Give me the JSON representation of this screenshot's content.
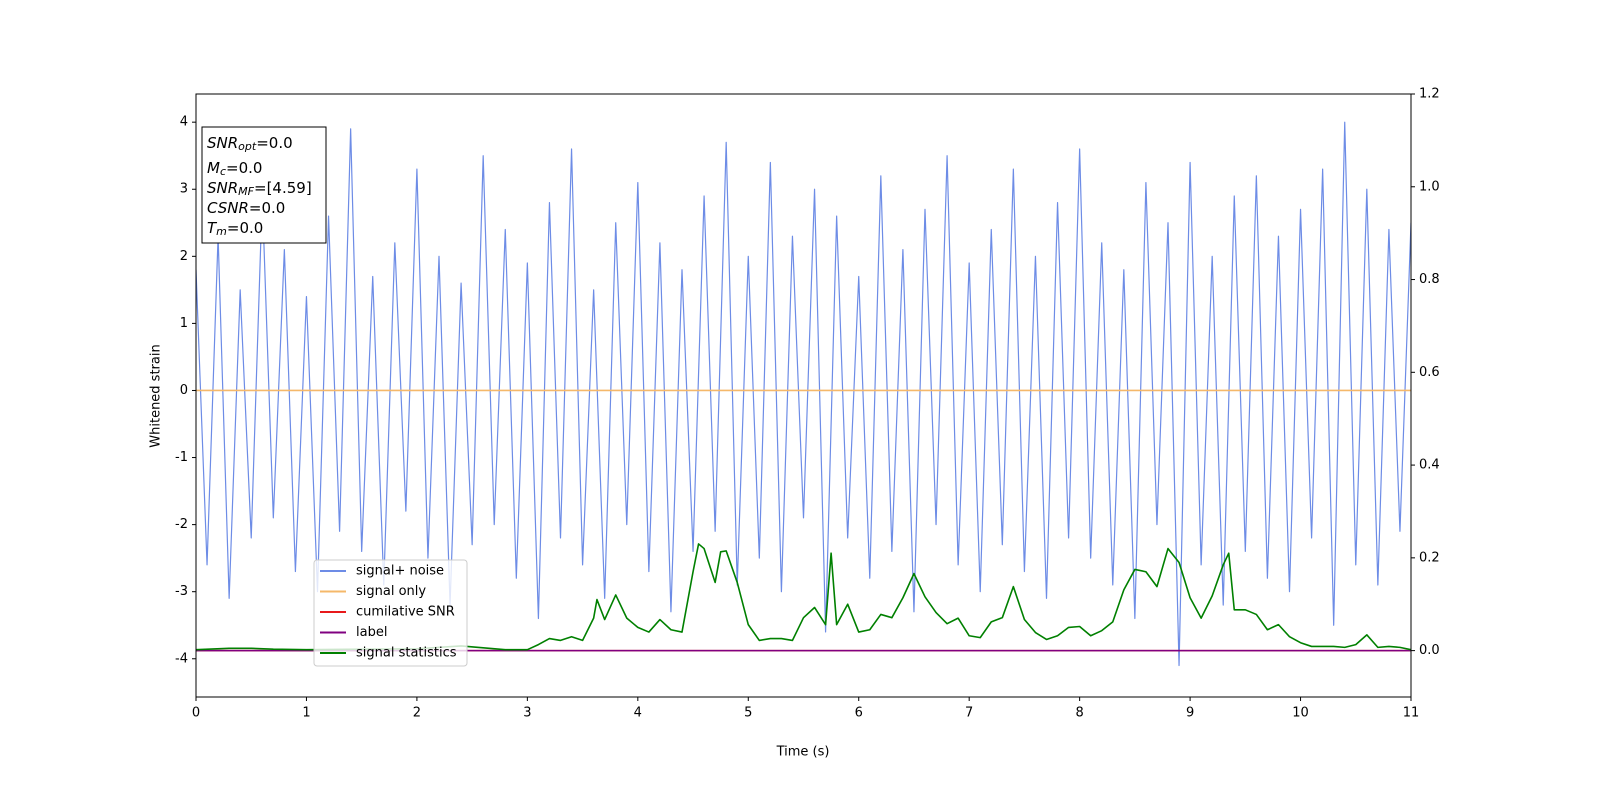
{
  "chart_data": {
    "type": "line",
    "xlabel": "Time (s)",
    "ylabel": "Whitened strain",
    "xlim": [
      0,
      11
    ],
    "xticks": [
      0,
      1,
      2,
      3,
      4,
      5,
      6,
      7,
      8,
      9,
      10,
      11
    ],
    "ylim": [
      -4.57,
      4.42
    ],
    "yticks": [
      -4,
      -3,
      -2,
      -1,
      0,
      1,
      2,
      3,
      4
    ],
    "y2lim": [
      -0.1,
      1.2
    ],
    "y2ticks": [
      {
        "value": 0,
        "label": "0.0"
      },
      {
        "value": 0.2,
        "label": "0.2"
      },
      {
        "value": 0.4,
        "label": "0.4"
      },
      {
        "value": 0.6,
        "label": "0.6"
      },
      {
        "value": 0.8,
        "label": "0.8"
      },
      {
        "value": 1,
        "label": "1.0"
      },
      {
        "value": 1.2,
        "label": "1.2"
      }
    ],
    "legend": "lower left",
    "annotation": [
      {
        "symbol": "SNR",
        "subscript": "opt",
        "text": "=0.0"
      },
      {
        "symbol": "M",
        "subscript": "c",
        "text": "=0.0"
      },
      {
        "symbol": "SNR",
        "subscript": "MF",
        "text": "=[4.59]"
      },
      {
        "symbol": "CSNR",
        "text": "=0.0"
      },
      {
        "symbol": "T",
        "subscript": "m",
        "text": "=0.0"
      }
    ],
    "series": [
      {
        "name": "signal+ noise",
        "color": "#6d8ce6",
        "axis": "y",
        "x": [
          0,
          0.1,
          0.2,
          0.3,
          0.4,
          0.5,
          0.6,
          0.7,
          0.8,
          0.9,
          1,
          1.1,
          1.2,
          1.3,
          1.4,
          1.5,
          1.6,
          1.7,
          1.8,
          1.9,
          2,
          2.1,
          2.2,
          2.3,
          2.4,
          2.5,
          2.6,
          2.7,
          2.8,
          2.9,
          3,
          3.1,
          3.2,
          3.3,
          3.4,
          3.5,
          3.6,
          3.7,
          3.8,
          3.9,
          4,
          4.1,
          4.2,
          4.3,
          4.4,
          4.5,
          4.6,
          4.7,
          4.8,
          4.9,
          5,
          5.1,
          5.2,
          5.3,
          5.4,
          5.5,
          5.6,
          5.7,
          5.8,
          5.9,
          6,
          6.1,
          6.2,
          6.3,
          6.4,
          6.5,
          6.6,
          6.7,
          6.8,
          6.9,
          7,
          7.1,
          7.2,
          7.3,
          7.4,
          7.5,
          7.6,
          7.7,
          7.8,
          7.9,
          8,
          8.1,
          8.2,
          8.3,
          8.4,
          8.5,
          8.6,
          8.7,
          8.8,
          8.9,
          9,
          9.1,
          9.2,
          9.3,
          9.4,
          9.5,
          9.6,
          9.7,
          9.8,
          9.9,
          10,
          10.1,
          10.2,
          10.3,
          10.4,
          10.5,
          10.6,
          10.7,
          10.8,
          10.9,
          11
        ],
        "values": [
          1.8,
          -2.6,
          2.3,
          -3.1,
          1.5,
          -2.2,
          2.9,
          -1.9,
          2.1,
          -2.7,
          1.4,
          -3.0,
          2.6,
          -2.1,
          3.9,
          -2.4,
          1.7,
          -2.9,
          2.2,
          -1.8,
          3.3,
          -2.5,
          2.0,
          -3.2,
          1.6,
          -2.3,
          3.5,
          -2.0,
          2.4,
          -2.8,
          1.9,
          -3.4,
          2.8,
          -2.2,
          3.6,
          -2.6,
          1.5,
          -3.1,
          2.5,
          -2.0,
          3.1,
          -2.7,
          2.2,
          -3.3,
          1.8,
          -2.4,
          2.9,
          -2.1,
          3.7,
          -2.9,
          2.0,
          -2.5,
          3.4,
          -3.0,
          2.3,
          -1.9,
          3.0,
          -3.6,
          2.6,
          -2.2,
          1.7,
          -2.8,
          3.2,
          -2.4,
          2.1,
          -3.3,
          2.7,
          -2.0,
          3.5,
          -2.6,
          1.9,
          -3.0,
          2.4,
          -2.3,
          3.3,
          -2.7,
          2.0,
          -3.1,
          2.8,
          -2.2,
          3.6,
          -2.5,
          2.2,
          -2.9,
          1.8,
          -3.4,
          3.1,
          -2.0,
          2.5,
          -4.1,
          3.4,
          -2.6,
          2.0,
          -3.2,
          2.9,
          -2.4,
          3.2,
          -2.8,
          2.3,
          -3.0,
          2.7,
          -2.2,
          3.3,
          -3.5,
          4.0,
          -2.6,
          3.0,
          -2.9,
          2.4,
          -2.1,
          2.5
        ]
      },
      {
        "name": "signal only",
        "color": "#f5b86a",
        "axis": "y",
        "x": [
          0,
          11
        ],
        "values": [
          0,
          0
        ]
      },
      {
        "name": "cumilative SNR",
        "color": "#e8191b",
        "axis": "y2",
        "x": [
          0,
          11
        ],
        "values": [
          0,
          0
        ]
      },
      {
        "name": "label",
        "color": "#800080",
        "axis": "y2",
        "x": [
          0,
          11
        ],
        "values": [
          0,
          0
        ]
      },
      {
        "name": "signal statistics",
        "color": "#008000",
        "axis": "y2",
        "x": [
          0,
          0.3,
          0.5,
          0.7,
          1,
          1.5,
          2,
          2.4,
          2.6,
          2.8,
          3,
          3.1,
          3.2,
          3.3,
          3.4,
          3.5,
          3.6,
          3.63,
          3.7,
          3.8,
          3.9,
          4,
          4.1,
          4.2,
          4.3,
          4.4,
          4.5,
          4.55,
          4.6,
          4.7,
          4.75,
          4.8,
          4.9,
          5,
          5.1,
          5.2,
          5.3,
          5.4,
          5.5,
          5.6,
          5.7,
          5.75,
          5.8,
          5.9,
          6,
          6.1,
          6.2,
          6.3,
          6.4,
          6.5,
          6.6,
          6.7,
          6.8,
          6.9,
          7,
          7.1,
          7.2,
          7.3,
          7.4,
          7.5,
          7.6,
          7.7,
          7.8,
          7.9,
          8,
          8.1,
          8.2,
          8.3,
          8.4,
          8.5,
          8.6,
          8.7,
          8.8,
          8.9,
          9,
          9.1,
          9.2,
          9.3,
          9.35,
          9.4,
          9.5,
          9.6,
          9.7,
          9.8,
          9.9,
          10,
          10.1,
          10.2,
          10.3,
          10.4,
          10.5,
          10.6,
          10.7,
          10.8,
          10.9,
          11
        ],
        "values": [
          0.002,
          0.005,
          0.005,
          0.003,
          0.002,
          0.003,
          0.004,
          0.01,
          0.006,
          0.002,
          0.002,
          0.013,
          0.026,
          0.022,
          0.03,
          0.022,
          0.07,
          0.11,
          0.067,
          0.12,
          0.07,
          0.05,
          0.04,
          0.067,
          0.045,
          0.04,
          0.17,
          0.23,
          0.22,
          0.147,
          0.213,
          0.215,
          0.147,
          0.056,
          0.022,
          0.026,
          0.026,
          0.022,
          0.071,
          0.093,
          0.056,
          0.21,
          0.056,
          0.1,
          0.04,
          0.045,
          0.078,
          0.071,
          0.114,
          0.166,
          0.116,
          0.082,
          0.058,
          0.07,
          0.032,
          0.028,
          0.062,
          0.071,
          0.138,
          0.067,
          0.039,
          0.024,
          0.032,
          0.05,
          0.052,
          0.032,
          0.043,
          0.062,
          0.131,
          0.175,
          0.17,
          0.138,
          0.22,
          0.19,
          0.114,
          0.07,
          0.118,
          0.185,
          0.21,
          0.088,
          0.088,
          0.078,
          0.045,
          0.056,
          0.03,
          0.017,
          0.009,
          0.009,
          0.009,
          0.007,
          0.013,
          0.034,
          0.007,
          0.009,
          0.007,
          0.002
        ]
      }
    ]
  }
}
